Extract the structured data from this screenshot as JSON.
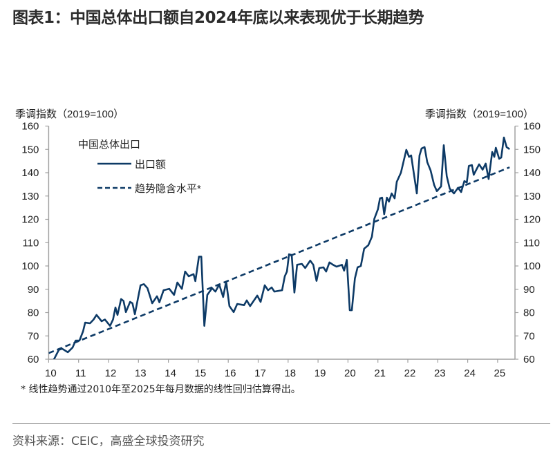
{
  "title": "图表1：中国总体出口额自2024年底以来表现优于长期趋势",
  "footnote": "* 线性趋势通过2010年至2025年每月数据的线性回归估算得出。",
  "source": "资料来源：CEIC，高盛全球投资研究",
  "chart_data": {
    "type": "line",
    "ylabel_left": "季调指数（2019=100）",
    "ylabel_right": "季调指数（2019=100）",
    "legend_title": "中国总体出口",
    "legend_placement": "top-left",
    "ylim": [
      60,
      160
    ],
    "yticks": [
      60,
      70,
      80,
      90,
      100,
      110,
      120,
      130,
      140,
      150,
      160
    ],
    "xlim": [
      2010,
      2025.55
    ],
    "xtick_labels": [
      "10",
      "11",
      "12",
      "13",
      "14",
      "15",
      "16",
      "17",
      "18",
      "19",
      "20",
      "21",
      "22",
      "23",
      "24",
      "25"
    ],
    "grid": false,
    "color": "#0d3a66",
    "series": [
      {
        "name": "出口额",
        "style": "solid",
        "points": [
          [
            2010.1,
            58
          ],
          [
            2010.34,
            64
          ],
          [
            2010.45,
            64.5
          ],
          [
            2010.64,
            63
          ],
          [
            2010.8,
            65
          ],
          [
            2010.9,
            68
          ],
          [
            2011.03,
            68
          ],
          [
            2011.15,
            72
          ],
          [
            2011.22,
            75.7
          ],
          [
            2011.38,
            75.4
          ],
          [
            2011.5,
            77
          ],
          [
            2011.6,
            79
          ],
          [
            2011.77,
            76.3
          ],
          [
            2011.88,
            77
          ],
          [
            2012.05,
            74.3
          ],
          [
            2012.15,
            77
          ],
          [
            2012.23,
            82.2
          ],
          [
            2012.3,
            79
          ],
          [
            2012.42,
            85.8
          ],
          [
            2012.5,
            85
          ],
          [
            2012.58,
            80.2
          ],
          [
            2012.72,
            84.6
          ],
          [
            2012.8,
            84
          ],
          [
            2012.88,
            79.3
          ],
          [
            2013.07,
            91.7
          ],
          [
            2013.18,
            92.2
          ],
          [
            2013.3,
            90.5
          ],
          [
            2013.46,
            84
          ],
          [
            2013.62,
            87
          ],
          [
            2013.7,
            84.4
          ],
          [
            2013.84,
            89.6
          ],
          [
            2014.03,
            90.2
          ],
          [
            2014.19,
            87.6
          ],
          [
            2014.3,
            92.9
          ],
          [
            2014.45,
            90.2
          ],
          [
            2014.56,
            97.6
          ],
          [
            2014.68,
            95.6
          ],
          [
            2014.84,
            96.5
          ],
          [
            2014.9,
            93.5
          ],
          [
            2015.02,
            104
          ],
          [
            2015.1,
            104
          ],
          [
            2015.2,
            74.3
          ],
          [
            2015.3,
            87.6
          ],
          [
            2015.46,
            90.5
          ],
          [
            2015.57,
            89
          ],
          [
            2015.7,
            92
          ],
          [
            2015.83,
            86.7
          ],
          [
            2015.93,
            93.2
          ],
          [
            2016.04,
            82.8
          ],
          [
            2016.18,
            80.2
          ],
          [
            2016.3,
            83.7
          ],
          [
            2016.53,
            83.2
          ],
          [
            2016.62,
            85.2
          ],
          [
            2016.73,
            82.8
          ],
          [
            2016.97,
            87.3
          ],
          [
            2017.08,
            84.6
          ],
          [
            2017.22,
            91.7
          ],
          [
            2017.33,
            89.6
          ],
          [
            2017.45,
            90.8
          ],
          [
            2017.54,
            89
          ],
          [
            2017.8,
            89.6
          ],
          [
            2017.89,
            95.6
          ],
          [
            2017.96,
            97.6
          ],
          [
            2018.03,
            105
          ],
          [
            2018.12,
            104.7
          ],
          [
            2018.21,
            88.6
          ],
          [
            2018.3,
            100.5
          ],
          [
            2018.46,
            100.9
          ],
          [
            2018.57,
            99.1
          ],
          [
            2018.74,
            102.3
          ],
          [
            2018.84,
            100.5
          ],
          [
            2018.95,
            93.6
          ],
          [
            2019.04,
            99.1
          ],
          [
            2019.18,
            99.4
          ],
          [
            2019.27,
            97.6
          ],
          [
            2019.38,
            101.5
          ],
          [
            2019.5,
            100.5
          ],
          [
            2019.62,
            99.7
          ],
          [
            2019.8,
            100.5
          ],
          [
            2019.87,
            98
          ],
          [
            2019.96,
            102.6
          ],
          [
            2020.06,
            81
          ],
          [
            2020.13,
            81
          ],
          [
            2020.23,
            94.6
          ],
          [
            2020.32,
            99.4
          ],
          [
            2020.43,
            100
          ],
          [
            2020.54,
            107.4
          ],
          [
            2020.68,
            108.9
          ],
          [
            2020.8,
            112.5
          ],
          [
            2020.88,
            120.2
          ],
          [
            2021.0,
            124.3
          ],
          [
            2021.07,
            129
          ],
          [
            2021.14,
            129.3
          ],
          [
            2021.21,
            122.2
          ],
          [
            2021.3,
            129.3
          ],
          [
            2021.37,
            127.6
          ],
          [
            2021.46,
            131.1
          ],
          [
            2021.56,
            129
          ],
          [
            2021.63,
            136.1
          ],
          [
            2021.77,
            140
          ],
          [
            2021.95,
            149.8
          ],
          [
            2022.04,
            146.8
          ],
          [
            2022.11,
            147.4
          ],
          [
            2022.3,
            131.1
          ],
          [
            2022.39,
            147.4
          ],
          [
            2022.46,
            150.4
          ],
          [
            2022.56,
            151
          ],
          [
            2022.65,
            144.5
          ],
          [
            2022.76,
            141
          ],
          [
            2022.88,
            134.7
          ],
          [
            2022.97,
            132.1
          ],
          [
            2023.11,
            134.1
          ],
          [
            2023.2,
            151.8
          ],
          [
            2023.3,
            138.5
          ],
          [
            2023.4,
            133.2
          ],
          [
            2023.54,
            131.1
          ],
          [
            2023.68,
            133.5
          ],
          [
            2023.78,
            131.7
          ],
          [
            2023.89,
            136.4
          ],
          [
            2023.97,
            135.8
          ],
          [
            2024.04,
            142.9
          ],
          [
            2024.14,
            143.3
          ],
          [
            2024.2,
            139.1
          ],
          [
            2024.38,
            143.6
          ],
          [
            2024.5,
            141.3
          ],
          [
            2024.6,
            143.9
          ],
          [
            2024.7,
            137.3
          ],
          [
            2024.82,
            148.9
          ],
          [
            2024.89,
            146.8
          ],
          [
            2024.94,
            150.7
          ],
          [
            2025.05,
            146
          ],
          [
            2025.12,
            146.5
          ],
          [
            2025.21,
            155.1
          ],
          [
            2025.3,
            151
          ],
          [
            2025.4,
            150.1
          ]
        ]
      },
      {
        "name": "趋势隐含水平*",
        "style": "dashed",
        "points": [
          [
            2010.0,
            62.6
          ],
          [
            2025.4,
            142.3
          ]
        ]
      }
    ]
  }
}
